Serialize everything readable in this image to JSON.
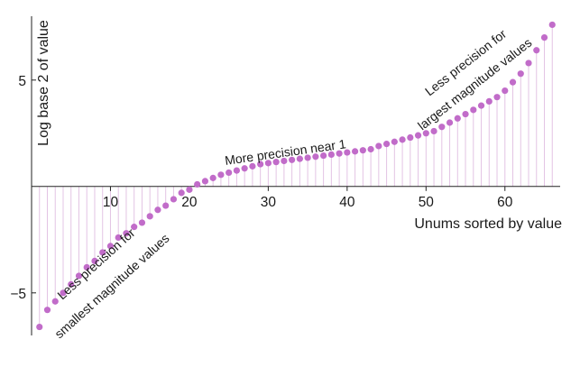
{
  "chart_data": {
    "type": "scatter",
    "title": "",
    "xlabel": "Unums sorted by value",
    "ylabel": "Log base 2 of value",
    "xlim": [
      0,
      67
    ],
    "ylim": [
      -7,
      8
    ],
    "x_ticks": [
      10,
      20,
      30,
      40,
      50,
      60
    ],
    "y_ticks": [
      -5,
      5
    ],
    "grid": false,
    "stems": true,
    "point_color": "#c16cc9",
    "stem_color": "#e3c4e4",
    "annotations": [
      {
        "text": "More precision near 1",
        "near": [
          34,
          1.6
        ]
      },
      {
        "text": "Less precision for",
        "near": [
          60,
          3.3
        ]
      },
      {
        "text": "largest magnitude values",
        "near": [
          60,
          2.5
        ]
      },
      {
        "text": "Less precision for",
        "near": [
          9,
          -3.3
        ]
      },
      {
        "text": "smallest magnitude values",
        "near": [
          9,
          -4.1
        ]
      }
    ],
    "series": [
      {
        "x": [
          1,
          2,
          3,
          4,
          5,
          6,
          7,
          8,
          9,
          10,
          11,
          12,
          13,
          14,
          15,
          16,
          17,
          18,
          19,
          20,
          21,
          22,
          23,
          24,
          25,
          26,
          27,
          28,
          29,
          30,
          31,
          32,
          33,
          34,
          35,
          36,
          37,
          38,
          39,
          40,
          41,
          42,
          43,
          44,
          45,
          46,
          47,
          48,
          49,
          50,
          51,
          52,
          53,
          54,
          55,
          56,
          57,
          58,
          59,
          60,
          61,
          62,
          63,
          64,
          65,
          66
        ],
        "y": [
          -6.6,
          -5.8,
          -5.4,
          -5.0,
          -4.6,
          -4.2,
          -3.8,
          -3.5,
          -3.1,
          -2.8,
          -2.4,
          -2.2,
          -1.9,
          -1.7,
          -1.4,
          -1.1,
          -0.9,
          -0.6,
          -0.3,
          -0.15,
          0.1,
          0.25,
          0.4,
          0.55,
          0.65,
          0.75,
          0.85,
          0.95,
          1.05,
          1.1,
          1.15,
          1.2,
          1.25,
          1.3,
          1.35,
          1.4,
          1.45,
          1.5,
          1.55,
          1.6,
          1.65,
          1.7,
          1.75,
          1.9,
          2.0,
          2.1,
          2.2,
          2.3,
          2.4,
          2.5,
          2.6,
          2.8,
          3.0,
          3.2,
          3.4,
          3.6,
          3.8,
          4.0,
          4.2,
          4.5,
          4.9,
          5.3,
          5.8,
          6.4,
          7.0,
          7.6
        ]
      }
    ]
  }
}
